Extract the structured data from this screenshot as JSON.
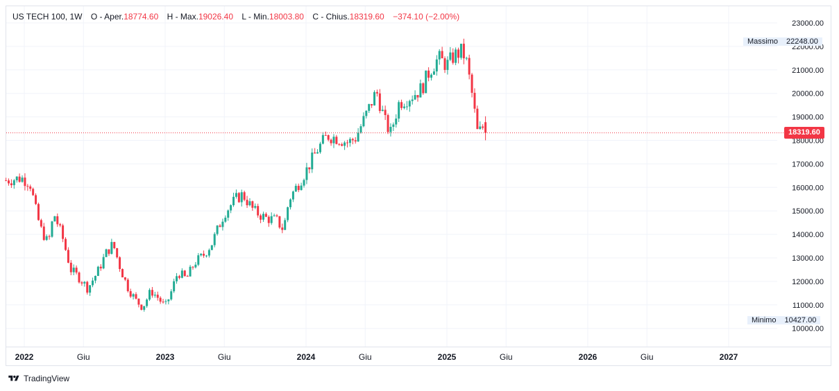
{
  "symbol": "US TECH 100, 1W",
  "legend": {
    "open_label": "O - Aper.",
    "open_value": "18774.60",
    "high_label": "H - Max.",
    "high_value": "19026.40",
    "low_label": "L - Min.",
    "low_value": "18003.80",
    "close_label": "C - Chius.",
    "close_value": "18319.60",
    "change_value": "−374.10 (−2.00%)"
  },
  "max_label": "Massimo",
  "max_value": "22248.00",
  "min_label": "Minimo",
  "min_value": "10427.00",
  "last_price": "18319.60",
  "footer_brand": "TradingView",
  "colors": {
    "up": "#22ab94",
    "down": "#f23645",
    "grid": "#f0f3fa",
    "text": "#131722"
  },
  "chart_data": {
    "type": "candlestick",
    "interval": "1W",
    "y_ticks": [
      "23000.00",
      "22000.00",
      "21000.00",
      "20000.00",
      "19000.00",
      "18000.00",
      "17000.00",
      "16000.00",
      "15000.00",
      "14000.00",
      "13000.00",
      "12000.00",
      "11000.00",
      "10000.00"
    ],
    "x_ticks": [
      {
        "label": "2022",
        "t": 2022.0
      },
      {
        "label": "Giu",
        "t": 2022.42
      },
      {
        "label": "2023",
        "t": 2023.0
      },
      {
        "label": "Giu",
        "t": 2023.42
      },
      {
        "label": "2024",
        "t": 2024.0
      },
      {
        "label": "Giu",
        "t": 2024.42
      },
      {
        "label": "2025",
        "t": 2025.0
      },
      {
        "label": "Giu",
        "t": 2025.42
      },
      {
        "label": "2026",
        "t": 2026.0
      },
      {
        "label": "Giu",
        "t": 2026.42
      },
      {
        "label": "2027",
        "t": 2027.0
      }
    ],
    "ylim": [
      9500,
      23400
    ],
    "xlim": [
      2021.87,
      2027.35
    ],
    "current_price": 18319.6,
    "anchors": [
      [
        2021.87,
        16300
      ],
      [
        2021.98,
        16400
      ],
      [
        2022.04,
        16200
      ],
      [
        2022.09,
        14800
      ],
      [
        2022.12,
        14200
      ],
      [
        2022.17,
        13600
      ],
      [
        2022.21,
        14900
      ],
      [
        2022.27,
        13900
      ],
      [
        2022.33,
        12500
      ],
      [
        2022.4,
        12100
      ],
      [
        2022.45,
        11700
      ],
      [
        2022.52,
        12400
      ],
      [
        2022.58,
        13200
      ],
      [
        2022.63,
        13600
      ],
      [
        2022.68,
        12600
      ],
      [
        2022.73,
        11800
      ],
      [
        2022.79,
        11200
      ],
      [
        2022.84,
        10900
      ],
      [
        2022.9,
        11600
      ],
      [
        2022.95,
        11300
      ],
      [
        2023.0,
        10900
      ],
      [
        2023.04,
        11500
      ],
      [
        2023.09,
        12400
      ],
      [
        2023.15,
        12100
      ],
      [
        2023.21,
        12800
      ],
      [
        2023.27,
        13100
      ],
      [
        2023.33,
        13600
      ],
      [
        2023.42,
        14900
      ],
      [
        2023.5,
        15500
      ],
      [
        2023.55,
        15700
      ],
      [
        2023.63,
        15000
      ],
      [
        2023.71,
        14700
      ],
      [
        2023.79,
        14600
      ],
      [
        2023.84,
        14200
      ],
      [
        2023.88,
        15500
      ],
      [
        2023.95,
        16200
      ],
      [
        2024.0,
        16700
      ],
      [
        2024.08,
        17600
      ],
      [
        2024.15,
        18200
      ],
      [
        2024.22,
        18100
      ],
      [
        2024.3,
        17900
      ],
      [
        2024.35,
        18100
      ],
      [
        2024.42,
        19000
      ],
      [
        2024.5,
        20100
      ],
      [
        2024.56,
        18800
      ],
      [
        2024.6,
        18300
      ],
      [
        2024.66,
        19600
      ],
      [
        2024.75,
        19900
      ],
      [
        2024.82,
        20200
      ],
      [
        2024.88,
        21000
      ],
      [
        2024.94,
        21500
      ],
      [
        2025.0,
        21200
      ],
      [
        2025.05,
        21600
      ],
      [
        2025.11,
        21800
      ],
      [
        2025.14,
        21300
      ],
      [
        2025.18,
        19900
      ],
      [
        2025.22,
        18200
      ],
      [
        2025.25,
        18600
      ],
      [
        2025.28,
        18320
      ]
    ]
  }
}
